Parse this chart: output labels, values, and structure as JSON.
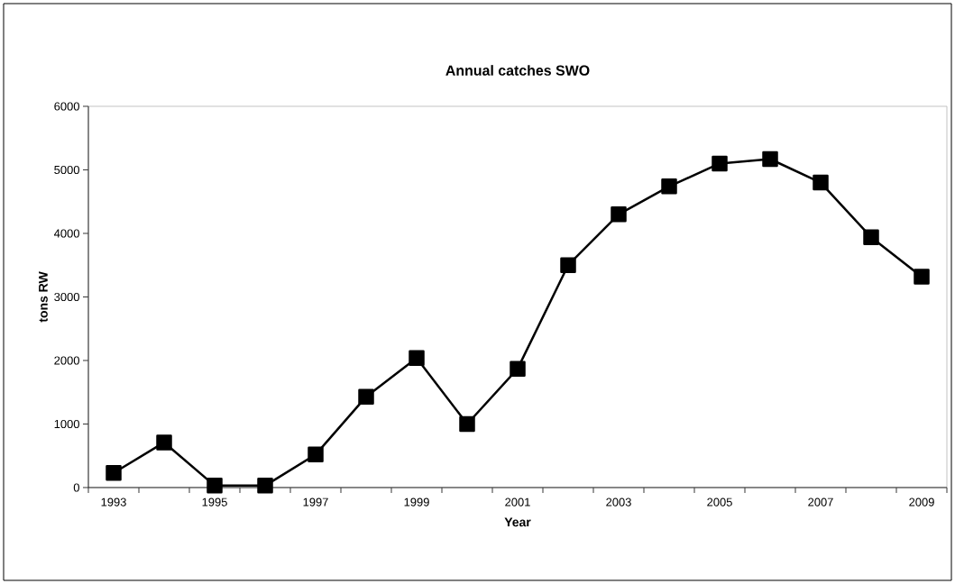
{
  "chart_data": {
    "type": "line",
    "title": "Annual catches SWO",
    "xlabel": "Year",
    "ylabel": "tons RW",
    "categories": [
      "1993",
      null,
      "1995",
      null,
      "1997",
      null,
      "1999",
      null,
      "2001",
      null,
      "2003",
      null,
      "2005",
      null,
      "2007",
      null,
      "2009"
    ],
    "series": [
      {
        "color": "#000000",
        "values": [
          230,
          710,
          30,
          30,
          520,
          1430,
          2040,
          1000,
          1870,
          3500,
          4300,
          4740,
          5100,
          5170,
          4800,
          3940,
          3320
        ]
      }
    ],
    "ylim": [
      0,
      6000
    ],
    "yticks": [
      0,
      1000,
      2000,
      3000,
      4000,
      5000,
      6000
    ],
    "grid": false,
    "marker": "square",
    "line_style": "solid"
  }
}
